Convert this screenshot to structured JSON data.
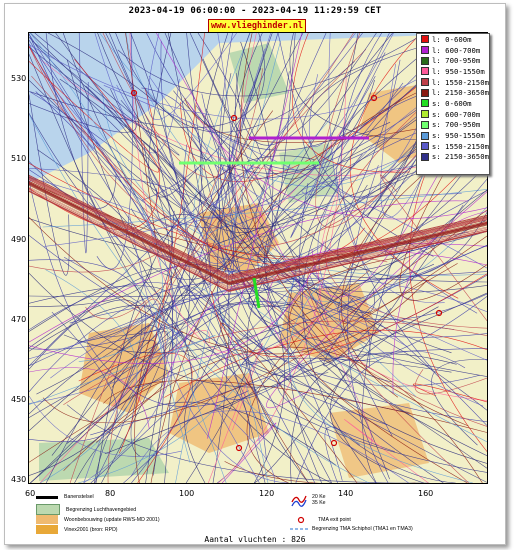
{
  "header": {
    "title": "2023-04-19 06:00:00 - 2023-04-19 11:29:59 CET",
    "brand": "www.vlieghinder.nl"
  },
  "axes": {
    "y_ticks": [
      "530",
      "510",
      "490",
      "470",
      "450",
      "430"
    ],
    "x_ticks": [
      "60",
      "80",
      "100",
      "120",
      "140",
      "160"
    ]
  },
  "legend": {
    "items": [
      {
        "label": "l: 0-600m",
        "color": "#e01010"
      },
      {
        "label": "l: 600-700m",
        "color": "#b020d0"
      },
      {
        "label": "l: 700-950m",
        "color": "#2a6b1a"
      },
      {
        "label": "l: 950-1550m",
        "color": "#ff5a9a"
      },
      {
        "label": "l: 1550-2150m",
        "color": "#c0404a"
      },
      {
        "label": "l: 2150-3650m",
        "color": "#8a1a12"
      },
      {
        "label": "s: 0-600m",
        "color": "#22dd22"
      },
      {
        "label": "s: 600-700m",
        "color": "#b0ea30"
      },
      {
        "label": "s: 700-950m",
        "color": "#70ff70"
      },
      {
        "label": "s: 950-1550m",
        "color": "#5a9ad8"
      },
      {
        "label": "s: 1550-2150m",
        "color": "#5a5ac8"
      },
      {
        "label": "s: 2150-3650m",
        "color": "#30308a"
      }
    ]
  },
  "bottom_legend": {
    "runway": "Banenstelsel",
    "airport_boundary": "Begrenzing Luchthavengebied",
    "housing": "Woonbebouwing (update RWS-MD 2001)",
    "vinex": "Vinex2001 (bron: RPD)",
    "ke20": "20 Ke",
    "ke35": "35 Ke",
    "tma_exit": "TMA exit point",
    "tma_boundary": "Begrenzing TMA Schiphol  (TMA1 en TMA3)"
  },
  "footer": {
    "count_text": "Aantal vluchten : 826"
  },
  "colors": {
    "water": "#b9d4ec",
    "land": "#f2f0c8",
    "urban": "#efba70",
    "green": "#bcd9b0"
  }
}
